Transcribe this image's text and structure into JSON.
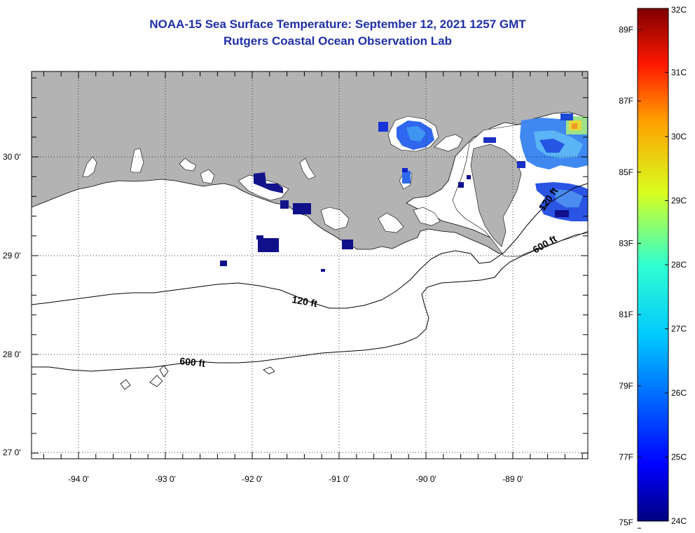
{
  "title": "NOAA-15 Sea Surface Temperature:  September 12, 2021 1257 GMT",
  "subtitle": "Rutgers Coastal Ocean Observation Lab",
  "map": {
    "lat_range": [
      26.95,
      30.85
    ],
    "lon_range": [
      -94.55,
      -88.0
    ],
    "lat_ticks": [
      {
        "value": 30,
        "label": "30 0'"
      },
      {
        "value": 29,
        "label": "29 0'"
      },
      {
        "value": 28,
        "label": "28 0'"
      },
      {
        "value": 27,
        "label": "27 0'"
      }
    ],
    "lon_ticks": [
      {
        "value": -94,
        "label": "-94 0'"
      },
      {
        "value": -93,
        "label": "-93 0'"
      },
      {
        "value": -92,
        "label": "-92 0'"
      },
      {
        "value": -91,
        "label": "-91 0'"
      },
      {
        "value": -90,
        "label": "-90 0'"
      },
      {
        "value": -89,
        "label": "-89 0'"
      }
    ],
    "grid": "dotted",
    "land_color": "#b3b3b3",
    "ocean_color": "#ffffff",
    "contours": [
      {
        "depth": "120 ft",
        "label": "120 ft"
      },
      {
        "depth": "600 ft",
        "label": "600 ft"
      }
    ]
  },
  "colorbar": {
    "min_c": 24,
    "max_c": 32,
    "celsius_labels": [
      "32C",
      "31C",
      "30C",
      "29C",
      "28C",
      "27C",
      "26C",
      "25C",
      "24C"
    ],
    "fahrenheit_labels": [
      "89F",
      "87F",
      "85F",
      "83F",
      "81F",
      "79F",
      "77F",
      "75F"
    ],
    "colormap": "jet"
  }
}
